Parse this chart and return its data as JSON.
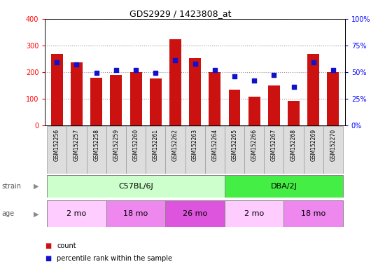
{
  "title": "GDS2929 / 1423808_at",
  "samples": [
    "GSM152256",
    "GSM152257",
    "GSM152258",
    "GSM152259",
    "GSM152260",
    "GSM152261",
    "GSM152262",
    "GSM152263",
    "GSM152264",
    "GSM152265",
    "GSM152266",
    "GSM152267",
    "GSM152268",
    "GSM152269",
    "GSM152270"
  ],
  "counts": [
    268,
    235,
    178,
    188,
    198,
    175,
    323,
    253,
    198,
    133,
    108,
    150,
    90,
    268,
    198
  ],
  "percentiles": [
    59,
    57,
    49,
    52,
    52,
    49,
    61,
    58,
    52,
    46,
    42,
    47,
    36,
    59,
    52
  ],
  "ylim_left": [
    0,
    400
  ],
  "ylim_right": [
    0,
    100
  ],
  "yticks_left": [
    0,
    100,
    200,
    300,
    400
  ],
  "yticks_right": [
    0,
    25,
    50,
    75,
    100
  ],
  "ytick_labels_right": [
    "0%",
    "25%",
    "50%",
    "75%",
    "100%"
  ],
  "bar_color": "#cc1111",
  "dot_color": "#1111cc",
  "strain_groups": [
    {
      "label": "C57BL/6J",
      "start": 0,
      "end": 9,
      "color": "#ccffcc"
    },
    {
      "label": "DBA/2J",
      "start": 9,
      "end": 15,
      "color": "#44ee44"
    }
  ],
  "age_groups": [
    {
      "label": "2 mo",
      "start": 0,
      "end": 3,
      "color": "#ffccff"
    },
    {
      "label": "18 mo",
      "start": 3,
      "end": 6,
      "color": "#ee88ee"
    },
    {
      "label": "26 mo",
      "start": 6,
      "end": 9,
      "color": "#dd66dd"
    },
    {
      "label": "2 mo",
      "start": 9,
      "end": 12,
      "color": "#ffccff"
    },
    {
      "label": "18 mo",
      "start": 12,
      "end": 15,
      "color": "#ee88ee"
    }
  ],
  "tick_area_color": "#dddddd",
  "axis_bg": "#ffffff",
  "legend_items": [
    {
      "label": "count",
      "color": "#cc1111"
    },
    {
      "label": "percentile rank within the sample",
      "color": "#1111cc"
    }
  ]
}
